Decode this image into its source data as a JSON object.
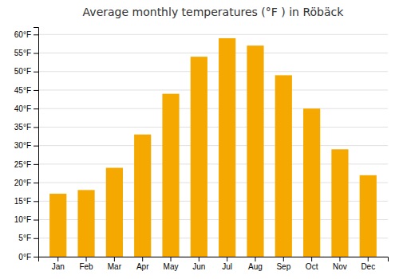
{
  "chart_data": {
    "type": "bar",
    "title": "Average monthly temperatures (°F ) in Röbäck",
    "categories": [
      "Jan",
      "Feb",
      "Mar",
      "Apr",
      "May",
      "Jun",
      "Jul",
      "Aug",
      "Sep",
      "Oct",
      "Nov",
      "Dec"
    ],
    "values": [
      17,
      18,
      24,
      33,
      44,
      54,
      59,
      57,
      49,
      40,
      29,
      22
    ],
    "color": "#F5A800",
    "ylim": [
      0,
      62
    ],
    "yticks": [
      {
        "value": 0,
        "label": "0°F"
      },
      {
        "value": 5,
        "label": "5°F"
      },
      {
        "value": 10,
        "label": "10°F"
      },
      {
        "value": 15,
        "label": "15°F"
      },
      {
        "value": 20,
        "label": "20°F"
      },
      {
        "value": 25,
        "label": "25°F"
      },
      {
        "value": 30,
        "label": "30°F"
      },
      {
        "value": 35,
        "label": "35°F"
      },
      {
        "value": 40,
        "label": "40°F"
      },
      {
        "value": 45,
        "label": "45°F"
      },
      {
        "value": 50,
        "label": "50°F"
      },
      {
        "value": 55,
        "label": "55°F"
      },
      {
        "value": 60,
        "label": "60°F"
      }
    ],
    "grid": true
  }
}
